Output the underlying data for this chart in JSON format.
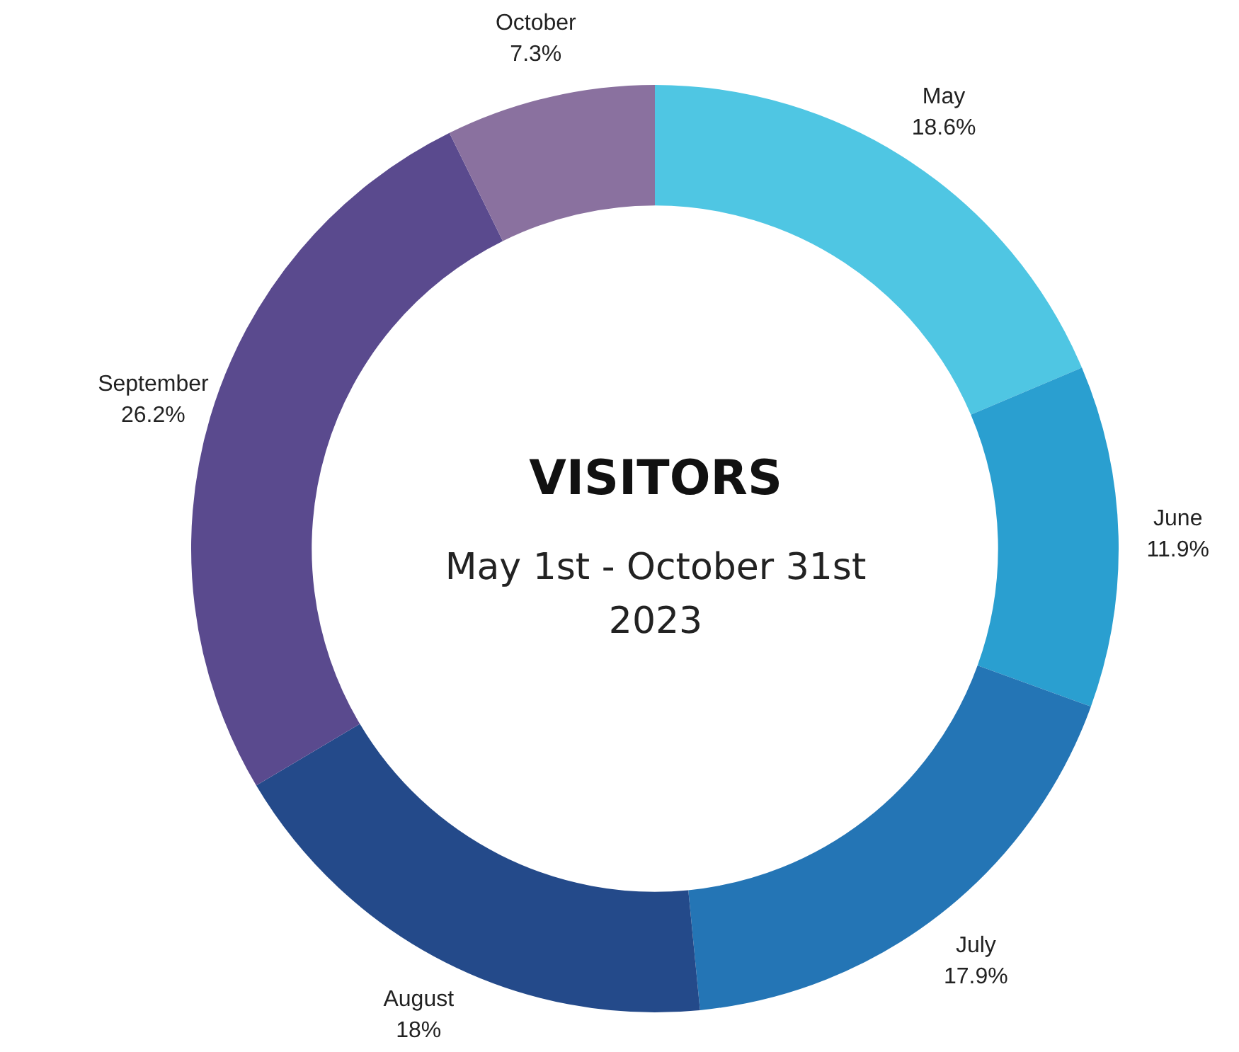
{
  "chart_data": {
    "type": "donut",
    "title": "VISITORS",
    "subtitle": "May 1st - October 31st\n2023",
    "categories": [
      "May",
      "June",
      "July",
      "August",
      "September",
      "October"
    ],
    "values": [
      18.6,
      11.9,
      17.9,
      18,
      26.2,
      7.3
    ],
    "value_labels": [
      "18.6%",
      "11.9%",
      "17.9%",
      "18%",
      "26.2%",
      "7.3%"
    ],
    "colors": [
      "#4fc6e3",
      "#2a9fd0",
      "#2475b5",
      "#244a8a",
      "#5a4a8e",
      "#8a719f"
    ],
    "legend": false
  }
}
